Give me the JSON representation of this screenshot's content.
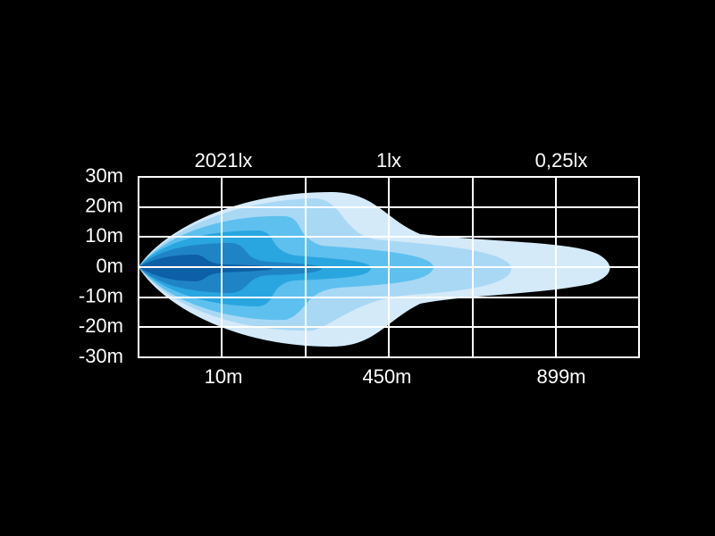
{
  "lux_labels": [
    "2021lx",
    "1lx",
    "0,25lx"
  ],
  "y_labels": [
    "30m",
    "20m",
    "10m",
    "0m",
    "-10m",
    "-20m",
    "-30m"
  ],
  "x_labels": [
    "10m",
    "450m",
    "899m"
  ]
}
